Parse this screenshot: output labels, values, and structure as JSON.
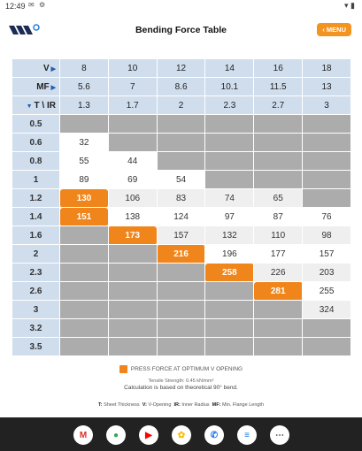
{
  "status": {
    "time": "12:49",
    "icons": [
      "gmail-notification",
      "settings-notification"
    ],
    "right_icons": [
      "wifi-icon",
      "battery-icon"
    ]
  },
  "app": {
    "title": "Bending Force Table",
    "menu_label": "MENU"
  },
  "header_rows": [
    {
      "label": "V",
      "values": [
        "8",
        "10",
        "12",
        "14",
        "16",
        "18"
      ]
    },
    {
      "label": "MF",
      "values": [
        "5.6",
        "7",
        "8.6",
        "10.1",
        "11.5",
        "13"
      ]
    },
    {
      "label": "T \\ IR",
      "values": [
        "1.3",
        "1.7",
        "2",
        "2.3",
        "2.7",
        "3"
      ]
    }
  ],
  "rows": [
    {
      "t": "0.5",
      "cells": [
        {
          "v": "",
          "s": "g"
        },
        {
          "v": "",
          "s": "g"
        },
        {
          "v": "",
          "s": "g"
        },
        {
          "v": "",
          "s": "g"
        },
        {
          "v": "",
          "s": "g"
        },
        {
          "v": "",
          "s": "g"
        }
      ]
    },
    {
      "t": "0.6",
      "cells": [
        {
          "v": "32",
          "s": "w"
        },
        {
          "v": "",
          "s": "g"
        },
        {
          "v": "",
          "s": "g"
        },
        {
          "v": "",
          "s": "g"
        },
        {
          "v": "",
          "s": "g"
        },
        {
          "v": "",
          "s": "g"
        }
      ]
    },
    {
      "t": "0.8",
      "cells": [
        {
          "v": "55",
          "s": "w"
        },
        {
          "v": "44",
          "s": "w"
        },
        {
          "v": "",
          "s": "g"
        },
        {
          "v": "",
          "s": "g"
        },
        {
          "v": "",
          "s": "g"
        },
        {
          "v": "",
          "s": "g"
        }
      ]
    },
    {
      "t": "1",
      "cells": [
        {
          "v": "89",
          "s": "w"
        },
        {
          "v": "69",
          "s": "w"
        },
        {
          "v": "54",
          "s": "w"
        },
        {
          "v": "",
          "s": "g"
        },
        {
          "v": "",
          "s": "g"
        },
        {
          "v": "",
          "s": "g"
        }
      ]
    },
    {
      "t": "1.2",
      "cells": [
        {
          "v": "130",
          "s": "o"
        },
        {
          "v": "106",
          "s": "l"
        },
        {
          "v": "83",
          "s": "l"
        },
        {
          "v": "74",
          "s": "l"
        },
        {
          "v": "65",
          "s": "l"
        },
        {
          "v": "",
          "s": "g"
        }
      ]
    },
    {
      "t": "1.4",
      "cells": [
        {
          "v": "151",
          "s": "o"
        },
        {
          "v": "138",
          "s": "w"
        },
        {
          "v": "124",
          "s": "w"
        },
        {
          "v": "97",
          "s": "w"
        },
        {
          "v": "87",
          "s": "w"
        },
        {
          "v": "76",
          "s": "w"
        }
      ]
    },
    {
      "t": "1.6",
      "cells": [
        {
          "v": "",
          "s": "g"
        },
        {
          "v": "173",
          "s": "o"
        },
        {
          "v": "157",
          "s": "l"
        },
        {
          "v": "132",
          "s": "l"
        },
        {
          "v": "110",
          "s": "l"
        },
        {
          "v": "98",
          "s": "l"
        }
      ]
    },
    {
      "t": "2",
      "cells": [
        {
          "v": "",
          "s": "g"
        },
        {
          "v": "",
          "s": "g"
        },
        {
          "v": "216",
          "s": "o"
        },
        {
          "v": "196",
          "s": "w"
        },
        {
          "v": "177",
          "s": "w"
        },
        {
          "v": "157",
          "s": "w"
        }
      ]
    },
    {
      "t": "2.3",
      "cells": [
        {
          "v": "",
          "s": "g"
        },
        {
          "v": "",
          "s": "g"
        },
        {
          "v": "",
          "s": "g"
        },
        {
          "v": "258",
          "s": "o"
        },
        {
          "v": "226",
          "s": "l"
        },
        {
          "v": "203",
          "s": "l"
        }
      ]
    },
    {
      "t": "2.6",
      "cells": [
        {
          "v": "",
          "s": "g"
        },
        {
          "v": "",
          "s": "g"
        },
        {
          "v": "",
          "s": "g"
        },
        {
          "v": "",
          "s": "g"
        },
        {
          "v": "281",
          "s": "o"
        },
        {
          "v": "255",
          "s": "w"
        }
      ]
    },
    {
      "t": "3",
      "cells": [
        {
          "v": "",
          "s": "g"
        },
        {
          "v": "",
          "s": "g"
        },
        {
          "v": "",
          "s": "g"
        },
        {
          "v": "",
          "s": "g"
        },
        {
          "v": "",
          "s": "g"
        },
        {
          "v": "324",
          "s": "l"
        }
      ]
    },
    {
      "t": "3.2",
      "cells": [
        {
          "v": "",
          "s": "g"
        },
        {
          "v": "",
          "s": "g"
        },
        {
          "v": "",
          "s": "g"
        },
        {
          "v": "",
          "s": "g"
        },
        {
          "v": "",
          "s": "g"
        },
        {
          "v": "",
          "s": "g"
        }
      ]
    },
    {
      "t": "3.5",
      "cells": [
        {
          "v": "",
          "s": "g"
        },
        {
          "v": "",
          "s": "g"
        },
        {
          "v": "",
          "s": "g"
        },
        {
          "v": "",
          "s": "g"
        },
        {
          "v": "",
          "s": "g"
        },
        {
          "v": "",
          "s": "g"
        }
      ]
    }
  ],
  "legend": {
    "label": "PRESS FORCE AT OPTIMUM V OPENING",
    "tensile": "Tensile Strength: 0.45 kN/mm²",
    "calc": "Calculation is based on theoretical 90° bend."
  },
  "abbreviations": [
    {
      "key": "T:",
      "text": "Sheet Thickness"
    },
    {
      "key": "V:",
      "text": "V-Opening"
    },
    {
      "key": "IR:",
      "text": "Inner Radius"
    },
    {
      "key": "MF:",
      "text": "Min. Flange Length"
    }
  ],
  "colors": {
    "accent": "#f0861b",
    "header": "#cfdded",
    "blocked": "#acacac"
  },
  "dock": [
    {
      "name": "gmail-app-icon",
      "glyph": "M",
      "color": "#d93025"
    },
    {
      "name": "chrome-app-icon",
      "glyph": "●",
      "color": "#34a853"
    },
    {
      "name": "youtube-app-icon",
      "glyph": "▶",
      "color": "#ff0000"
    },
    {
      "name": "photos-app-icon",
      "glyph": "✿",
      "color": "#fbbc04"
    },
    {
      "name": "phone-app-icon",
      "glyph": "✆",
      "color": "#1a73e8"
    },
    {
      "name": "messages-app-icon",
      "glyph": "≡",
      "color": "#1a73e8"
    },
    {
      "name": "app-drawer-icon",
      "glyph": "⋯",
      "color": "#444"
    }
  ]
}
